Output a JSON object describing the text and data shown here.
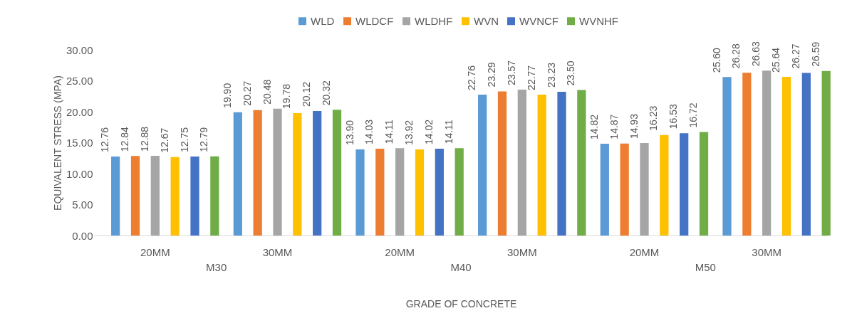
{
  "chart_data": {
    "type": "bar",
    "ylabel": "EQUIVALENT STRESS (MPA)",
    "xlabel": "GRADE OF CONCRETE",
    "categories": [
      "20MM",
      "30MM",
      "20MM",
      "30MM",
      "20MM",
      "30MM"
    ],
    "annotations": [
      "M30",
      "M40",
      "M50"
    ],
    "ylim": [
      0,
      30
    ],
    "yticks": [
      {
        "value": 0,
        "label": "0.00"
      },
      {
        "value": 5,
        "label": "5.00"
      },
      {
        "value": 10,
        "label": "10.00"
      },
      {
        "value": 15,
        "label": "15.00"
      },
      {
        "value": 20,
        "label": "20.00"
      },
      {
        "value": 25,
        "label": "25.00"
      },
      {
        "value": 30,
        "label": "30.00"
      }
    ],
    "grid": false,
    "legend": "top",
    "series": [
      {
        "name": "WLD",
        "color": "#5b9bd5",
        "values": [
          12.76,
          19.9,
          13.9,
          22.76,
          14.82,
          25.6
        ],
        "value_labels": [
          "12.76",
          "19.90",
          "13.90",
          "22.76",
          "14.82",
          "25.60"
        ]
      },
      {
        "name": "WLDCF",
        "color": "#ed7d31",
        "values": [
          12.84,
          20.27,
          14.03,
          23.29,
          14.87,
          26.28
        ],
        "value_labels": [
          "12.84",
          "20.27",
          "14.03",
          "23.29",
          "14.87",
          "26.28"
        ]
      },
      {
        "name": "WLDHF",
        "color": "#a5a5a5",
        "values": [
          12.88,
          20.48,
          14.11,
          23.57,
          14.93,
          26.63
        ],
        "value_labels": [
          "12.88",
          "20.48",
          "14.11",
          "23.57",
          "14.93",
          "26.63"
        ]
      },
      {
        "name": "WVN",
        "color": "#ffc000",
        "values": [
          12.67,
          19.78,
          13.92,
          22.77,
          16.23,
          25.64
        ],
        "value_labels": [
          "12.67",
          "19.78",
          "13.92",
          "22.77",
          "16.23",
          "25.64"
        ]
      },
      {
        "name": "WVNCF",
        "color": "#4472c4",
        "values": [
          12.75,
          20.12,
          14.02,
          23.23,
          16.53,
          26.27
        ],
        "value_labels": [
          "12.75",
          "20.12",
          "14.02",
          "23.23",
          "16.53",
          "26.27"
        ]
      },
      {
        "name": "WVNHF",
        "color": "#70ad47",
        "values": [
          12.79,
          20.32,
          14.11,
          23.5,
          16.72,
          26.59
        ],
        "value_labels": [
          "12.79",
          "20.32",
          "14.11",
          "23.50",
          "16.72",
          "26.59"
        ]
      }
    ]
  }
}
